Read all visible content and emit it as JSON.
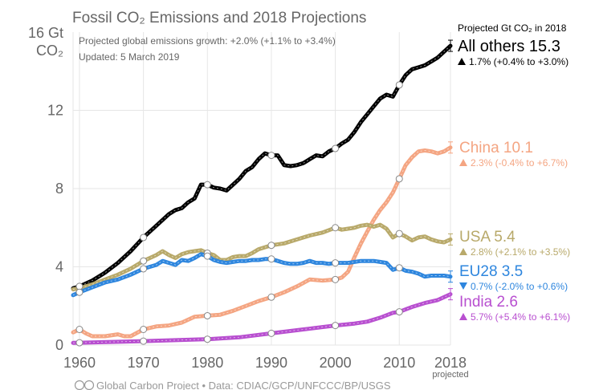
{
  "chart_data": {
    "type": "line",
    "title": "Fossil CO₂ Emissions and 2018 Projections",
    "ylabel_line1": "16 Gt",
    "ylabel_line2": "CO₂",
    "subtitle_line1": "Projected global emissions growth: +2.0% (+1.1% to +3.4%)",
    "subtitle_line2": "Updated: 5 March 2019",
    "legend_header": "Projected Gt CO₂ in 2018",
    "xlim": [
      1959,
      2018
    ],
    "ylim": [
      0,
      16
    ],
    "x_ticks": [
      1960,
      1970,
      1980,
      1990,
      2000,
      2010,
      2018
    ],
    "x_tick_labels": [
      "1960",
      "1970",
      "1980",
      "1990",
      "2000",
      "2010",
      "2018"
    ],
    "x_extra_label": "projected",
    "y_ticks": [
      0,
      4,
      8,
      12
    ],
    "y_tick_labels": [
      "0",
      "4",
      "8",
      "12"
    ],
    "grid": true,
    "footer": "Global Carbon Project  •  Data: CDIAC/GCP/UNFCCC/BP/USGS",
    "series": [
      {
        "name": "All others",
        "value_label": "15.3",
        "growth_label": "1.7% (+0.4% to +3.0%)",
        "direction": "up",
        "color": "#000000",
        "points": [
          [
            1959,
            2.9
          ],
          [
            1960,
            3.0
          ],
          [
            1962,
            3.3
          ],
          [
            1964,
            3.7
          ],
          [
            1966,
            4.2
          ],
          [
            1968,
            4.8
          ],
          [
            1970,
            5.5
          ],
          [
            1972,
            6.1
          ],
          [
            1974,
            6.7
          ],
          [
            1975,
            6.9
          ],
          [
            1976,
            7.0
          ],
          [
            1977,
            7.3
          ],
          [
            1978,
            7.5
          ],
          [
            1979,
            8.2
          ],
          [
            1980,
            8.2
          ],
          [
            1981,
            8.05
          ],
          [
            1982,
            8.0
          ],
          [
            1983,
            7.9
          ],
          [
            1984,
            8.2
          ],
          [
            1985,
            8.5
          ],
          [
            1986,
            8.9
          ],
          [
            1987,
            9.1
          ],
          [
            1988,
            9.5
          ],
          [
            1989,
            9.8
          ],
          [
            1990,
            9.7
          ],
          [
            1991,
            9.7
          ],
          [
            1992,
            9.2
          ],
          [
            1993,
            9.15
          ],
          [
            1994,
            9.2
          ],
          [
            1995,
            9.3
          ],
          [
            1996,
            9.5
          ],
          [
            1997,
            9.7
          ],
          [
            1998,
            9.65
          ],
          [
            1999,
            9.9
          ],
          [
            2000,
            10.05
          ],
          [
            2001,
            10.3
          ],
          [
            2002,
            10.5
          ],
          [
            2003,
            10.9
          ],
          [
            2004,
            11.4
          ],
          [
            2005,
            11.8
          ],
          [
            2006,
            12.2
          ],
          [
            2007,
            12.6
          ],
          [
            2008,
            12.8
          ],
          [
            2009,
            12.7
          ],
          [
            2010,
            13.3
          ],
          [
            2011,
            13.8
          ],
          [
            2012,
            14.1
          ],
          [
            2013,
            14.2
          ],
          [
            2014,
            14.3
          ],
          [
            2015,
            14.5
          ],
          [
            2016,
            14.7
          ],
          [
            2017,
            15.0
          ],
          [
            2018,
            15.3
          ]
        ]
      },
      {
        "name": "China",
        "value_label": "10.1",
        "growth_label": "2.3% (-0.4% to +6.7%)",
        "direction": "up",
        "color": "#f4a582",
        "points": [
          [
            1959,
            0.65
          ],
          [
            1960,
            0.8
          ],
          [
            1961,
            0.6
          ],
          [
            1962,
            0.45
          ],
          [
            1964,
            0.45
          ],
          [
            1966,
            0.55
          ],
          [
            1967,
            0.45
          ],
          [
            1968,
            0.45
          ],
          [
            1970,
            0.8
          ],
          [
            1972,
            0.95
          ],
          [
            1974,
            1.0
          ],
          [
            1976,
            1.15
          ],
          [
            1978,
            1.45
          ],
          [
            1980,
            1.5
          ],
          [
            1982,
            1.55
          ],
          [
            1984,
            1.75
          ],
          [
            1986,
            2.0
          ],
          [
            1988,
            2.25
          ],
          [
            1990,
            2.45
          ],
          [
            1992,
            2.7
          ],
          [
            1994,
            3.0
          ],
          [
            1996,
            3.35
          ],
          [
            1998,
            3.3
          ],
          [
            2000,
            3.35
          ],
          [
            2001,
            3.45
          ],
          [
            2002,
            3.75
          ],
          [
            2003,
            4.5
          ],
          [
            2004,
            5.2
          ],
          [
            2005,
            5.8
          ],
          [
            2006,
            6.4
          ],
          [
            2007,
            6.9
          ],
          [
            2008,
            7.3
          ],
          [
            2009,
            7.8
          ],
          [
            2010,
            8.5
          ],
          [
            2011,
            9.2
          ],
          [
            2012,
            9.6
          ],
          [
            2013,
            9.9
          ],
          [
            2014,
            9.95
          ],
          [
            2015,
            9.9
          ],
          [
            2016,
            9.8
          ],
          [
            2017,
            9.9
          ],
          [
            2018,
            10.1
          ]
        ]
      },
      {
        "name": "USA",
        "value_label": "5.4",
        "growth_label": "2.8% (+2.1% to +3.5%)",
        "direction": "up",
        "color": "#b8a96a",
        "points": [
          [
            1959,
            2.85
          ],
          [
            1960,
            2.9
          ],
          [
            1962,
            3.1
          ],
          [
            1964,
            3.35
          ],
          [
            1966,
            3.6
          ],
          [
            1968,
            3.9
          ],
          [
            1970,
            4.3
          ],
          [
            1972,
            4.6
          ],
          [
            1973,
            4.8
          ],
          [
            1974,
            4.6
          ],
          [
            1975,
            4.45
          ],
          [
            1976,
            4.65
          ],
          [
            1977,
            4.75
          ],
          [
            1978,
            4.8
          ],
          [
            1979,
            4.85
          ],
          [
            1980,
            4.7
          ],
          [
            1981,
            4.6
          ],
          [
            1982,
            4.35
          ],
          [
            1983,
            4.35
          ],
          [
            1984,
            4.5
          ],
          [
            1985,
            4.55
          ],
          [
            1986,
            4.55
          ],
          [
            1987,
            4.7
          ],
          [
            1988,
            4.9
          ],
          [
            1989,
            5.0
          ],
          [
            1990,
            5.1
          ],
          [
            1992,
            5.2
          ],
          [
            1994,
            5.4
          ],
          [
            1996,
            5.6
          ],
          [
            1998,
            5.75
          ],
          [
            2000,
            6.0
          ],
          [
            2001,
            5.9
          ],
          [
            2002,
            5.95
          ],
          [
            2003,
            6.0
          ],
          [
            2004,
            6.1
          ],
          [
            2005,
            6.15
          ],
          [
            2006,
            6.05
          ],
          [
            2007,
            6.15
          ],
          [
            2008,
            5.95
          ],
          [
            2009,
            5.5
          ],
          [
            2010,
            5.7
          ],
          [
            2011,
            5.55
          ],
          [
            2012,
            5.35
          ],
          [
            2013,
            5.5
          ],
          [
            2014,
            5.55
          ],
          [
            2015,
            5.4
          ],
          [
            2016,
            5.3
          ],
          [
            2017,
            5.25
          ],
          [
            2018,
            5.4
          ]
        ]
      },
      {
        "name": "EU28",
        "value_label": "3.5",
        "growth_label": "0.7% (-2.0% to +0.6%)",
        "direction": "down",
        "color": "#2e86de",
        "points": [
          [
            1959,
            2.55
          ],
          [
            1960,
            2.7
          ],
          [
            1962,
            2.95
          ],
          [
            1964,
            3.2
          ],
          [
            1966,
            3.35
          ],
          [
            1968,
            3.6
          ],
          [
            1970,
            3.9
          ],
          [
            1972,
            4.1
          ],
          [
            1973,
            4.3
          ],
          [
            1974,
            4.2
          ],
          [
            1975,
            4.1
          ],
          [
            1976,
            4.35
          ],
          [
            1977,
            4.3
          ],
          [
            1978,
            4.45
          ],
          [
            1979,
            4.65
          ],
          [
            1980,
            4.55
          ],
          [
            1981,
            4.35
          ],
          [
            1982,
            4.25
          ],
          [
            1983,
            4.2
          ],
          [
            1984,
            4.25
          ],
          [
            1985,
            4.3
          ],
          [
            1986,
            4.3
          ],
          [
            1987,
            4.35
          ],
          [
            1988,
            4.35
          ],
          [
            1989,
            4.4
          ],
          [
            1990,
            4.4
          ],
          [
            1991,
            4.3
          ],
          [
            1992,
            4.2
          ],
          [
            1993,
            4.15
          ],
          [
            1994,
            4.15
          ],
          [
            1995,
            4.2
          ],
          [
            1996,
            4.3
          ],
          [
            1997,
            4.2
          ],
          [
            1998,
            4.2
          ],
          [
            1999,
            4.15
          ],
          [
            2000,
            4.2
          ],
          [
            2002,
            4.2
          ],
          [
            2004,
            4.3
          ],
          [
            2006,
            4.3
          ],
          [
            2007,
            4.25
          ],
          [
            2008,
            4.2
          ],
          [
            2009,
            3.85
          ],
          [
            2010,
            3.95
          ],
          [
            2011,
            3.8
          ],
          [
            2012,
            3.75
          ],
          [
            2013,
            3.65
          ],
          [
            2014,
            3.5
          ],
          [
            2015,
            3.55
          ],
          [
            2016,
            3.55
          ],
          [
            2017,
            3.55
          ],
          [
            2018,
            3.5
          ]
        ]
      },
      {
        "name": "India",
        "value_label": "2.6",
        "growth_label": "5.7% (+5.4% to +6.1%)",
        "direction": "up",
        "color": "#b84fd0",
        "points": [
          [
            1959,
            0.11
          ],
          [
            1960,
            0.12
          ],
          [
            1965,
            0.16
          ],
          [
            1970,
            0.2
          ],
          [
            1975,
            0.25
          ],
          [
            1980,
            0.3
          ],
          [
            1985,
            0.4
          ],
          [
            1990,
            0.6
          ],
          [
            1995,
            0.8
          ],
          [
            2000,
            1.0
          ],
          [
            2003,
            1.1
          ],
          [
            2005,
            1.2
          ],
          [
            2007,
            1.4
          ],
          [
            2009,
            1.65
          ],
          [
            2010,
            1.7
          ],
          [
            2012,
            1.95
          ],
          [
            2014,
            2.15
          ],
          [
            2016,
            2.3
          ],
          [
            2017,
            2.45
          ],
          [
            2018,
            2.6
          ]
        ]
      }
    ],
    "markers": [
      {
        "series": 0,
        "years": [
          1960,
          1970,
          1980,
          1990,
          2000,
          2010
        ]
      },
      {
        "series": 1,
        "years": [
          1960,
          1970,
          1980,
          1990,
          2000,
          2010
        ]
      },
      {
        "series": 2,
        "years": [
          1970,
          1980,
          1990,
          2000,
          2010
        ]
      },
      {
        "series": 3,
        "years": [
          1960,
          1970,
          1980,
          1990,
          2000,
          2010
        ]
      },
      {
        "series": 4,
        "years": [
          1960,
          1970,
          1980,
          1990,
          2000,
          2010
        ]
      }
    ]
  }
}
